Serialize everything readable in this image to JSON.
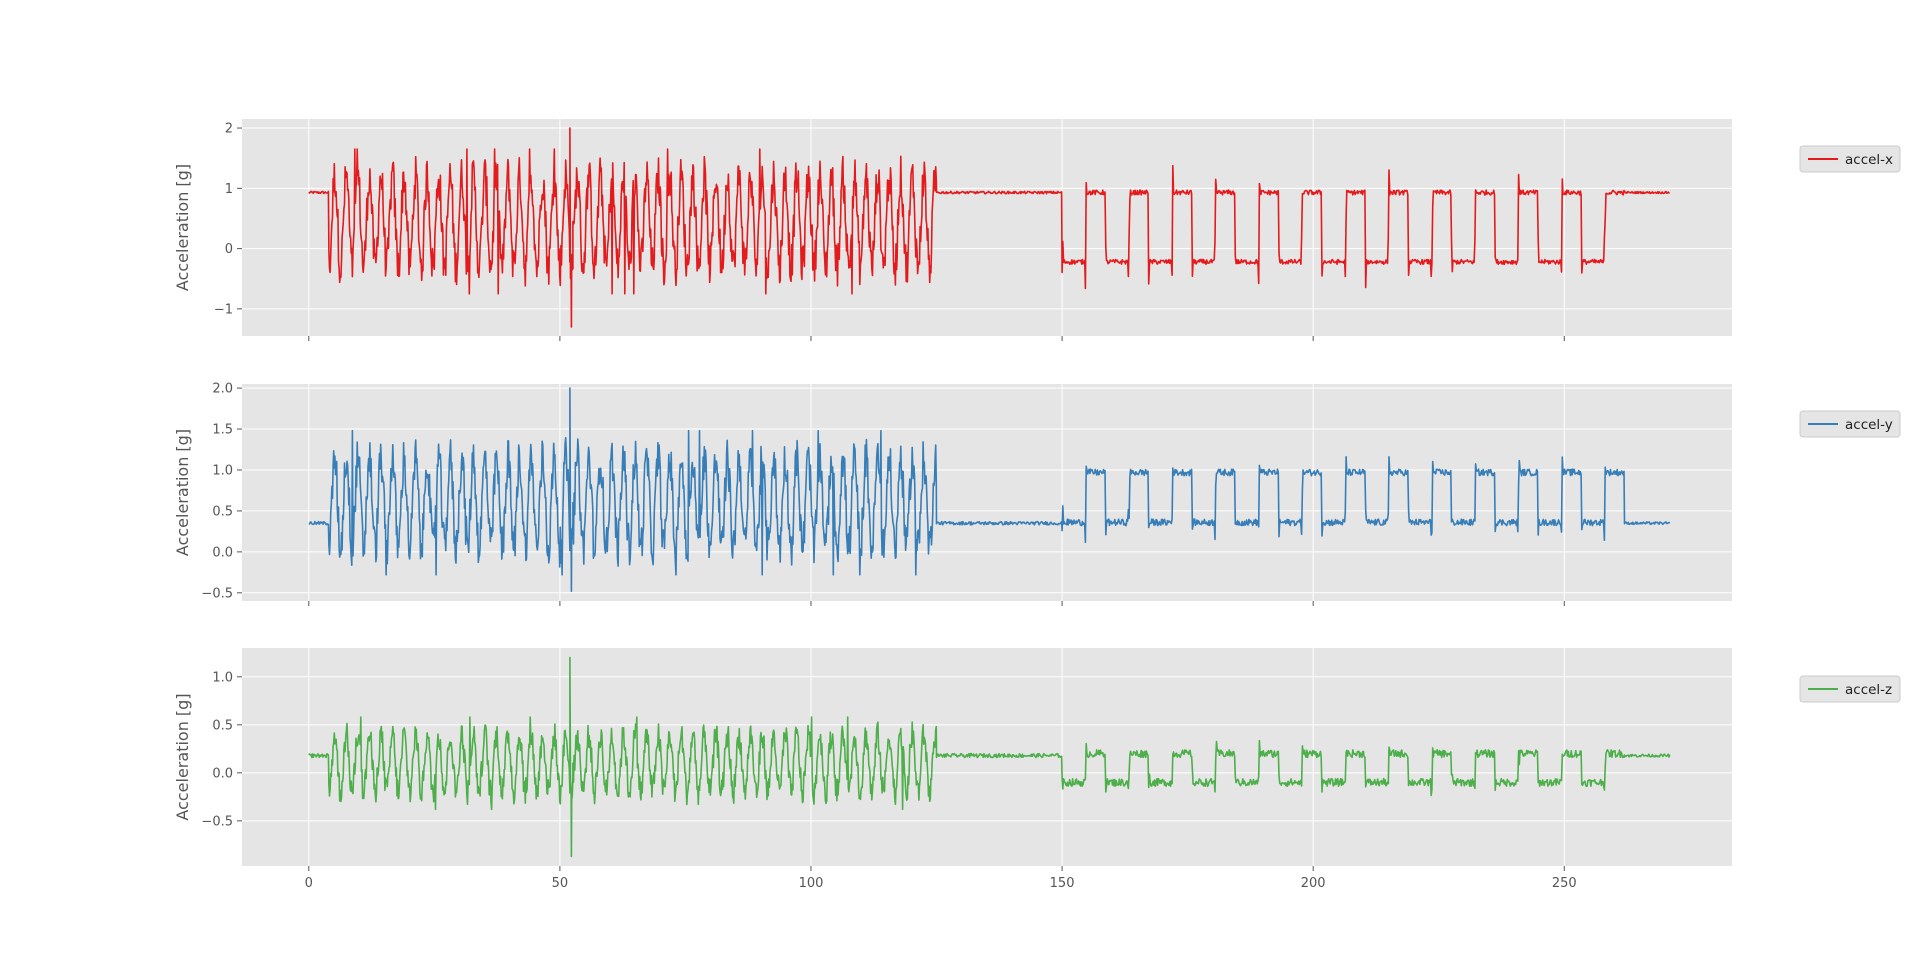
{
  "chart_data": [
    {
      "type": "line",
      "series": [
        {
          "name": "accel-x",
          "color": "#e41a1c"
        }
      ],
      "xlabel": "",
      "ylabel": "Acceleration [g]",
      "xlim": [
        -13.3,
        283.4
      ],
      "ylim": [
        -1.45,
        2.15
      ],
      "xticks": [
        0,
        50,
        100,
        150,
        200,
        250
      ],
      "yticks": [
        -1,
        0,
        1,
        2
      ],
      "ytick_labels": [
        "−1",
        "0",
        "1",
        "2"
      ],
      "show_xtick_labels": false,
      "baseline": 0.93,
      "active_segment": {
        "start": 4,
        "end": 125,
        "mean": 0.45,
        "amplitude": 0.75,
        "min": -1.3,
        "max": 2.0
      },
      "rest_segments": [
        {
          "start": 0,
          "end": 4
        },
        {
          "start": 125,
          "end": 150
        },
        {
          "start": 262,
          "end": 271
        }
      ],
      "steps": {
        "start": 150,
        "end": 262,
        "high": 0.93,
        "low": -0.22,
        "count": 13
      },
      "grid": true,
      "legend": "right"
    },
    {
      "type": "line",
      "series": [
        {
          "name": "accel-y",
          "color": "#377eb8"
        }
      ],
      "xlabel": "",
      "ylabel": "Acceleration [g]",
      "xlim": [
        -13.3,
        283.4
      ],
      "ylim": [
        -0.6,
        2.05
      ],
      "xticks": [
        0,
        50,
        100,
        150,
        200,
        250
      ],
      "yticks": [
        -0.5,
        0.0,
        0.5,
        1.0,
        1.5,
        2.0
      ],
      "ytick_labels": [
        "−0.5",
        "0.0",
        "0.5",
        "1.0",
        "1.5",
        "2.0"
      ],
      "show_xtick_labels": false,
      "baseline": 0.35,
      "active_segment": {
        "start": 4,
        "end": 125,
        "mean": 0.6,
        "amplitude": 0.55,
        "min": -0.48,
        "max": 2.0
      },
      "rest_segments": [
        {
          "start": 0,
          "end": 4
        },
        {
          "start": 125,
          "end": 150
        },
        {
          "start": 262,
          "end": 271
        }
      ],
      "steps": {
        "start": 150,
        "end": 262,
        "high": 0.97,
        "low": 0.36,
        "count": 13
      },
      "grid": true,
      "legend": "right"
    },
    {
      "type": "line",
      "series": [
        {
          "name": "accel-z",
          "color": "#4daf4a"
        }
      ],
      "xlabel": "",
      "ylabel": "Acceleration [g]",
      "xlim": [
        -13.3,
        283.4
      ],
      "ylim": [
        -0.97,
        1.3
      ],
      "xticks": [
        0,
        50,
        100,
        150,
        200,
        250
      ],
      "xtick_labels": [
        "0",
        "50",
        "100",
        "150",
        "200",
        "250"
      ],
      "yticks": [
        -0.5,
        0.0,
        0.5,
        1.0
      ],
      "ytick_labels": [
        "−0.5",
        "0.0",
        "0.5",
        "1.0"
      ],
      "show_xtick_labels": true,
      "baseline": 0.18,
      "active_segment": {
        "start": 4,
        "end": 125,
        "mean": 0.1,
        "amplitude": 0.3,
        "min": -0.87,
        "max": 1.2
      },
      "rest_segments": [
        {
          "start": 0,
          "end": 4
        },
        {
          "start": 125,
          "end": 150
        },
        {
          "start": 262,
          "end": 271
        }
      ],
      "steps": {
        "start": 150,
        "end": 262,
        "high": 0.2,
        "low": -0.1,
        "count": 13
      },
      "grid": true,
      "legend": "right"
    }
  ],
  "colors": {
    "panel_background": "#e5e5e5",
    "grid": "#ffffff",
    "tick": "#555555"
  }
}
